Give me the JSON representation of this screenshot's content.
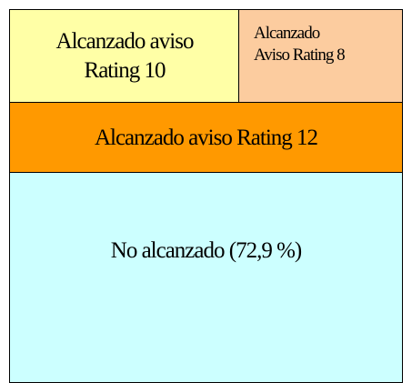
{
  "nodes": [
    {
      "lines": [
        "Alcanzado aviso",
        "Rating 10"
      ]
    },
    {
      "lines": [
        "Alcanzado",
        "Aviso Rating 8"
      ]
    },
    {
      "lines": [
        "Alcanzado aviso Rating 12"
      ]
    },
    {
      "lines": [
        "No alcanzado (72,9 %)"
      ]
    }
  ]
}
